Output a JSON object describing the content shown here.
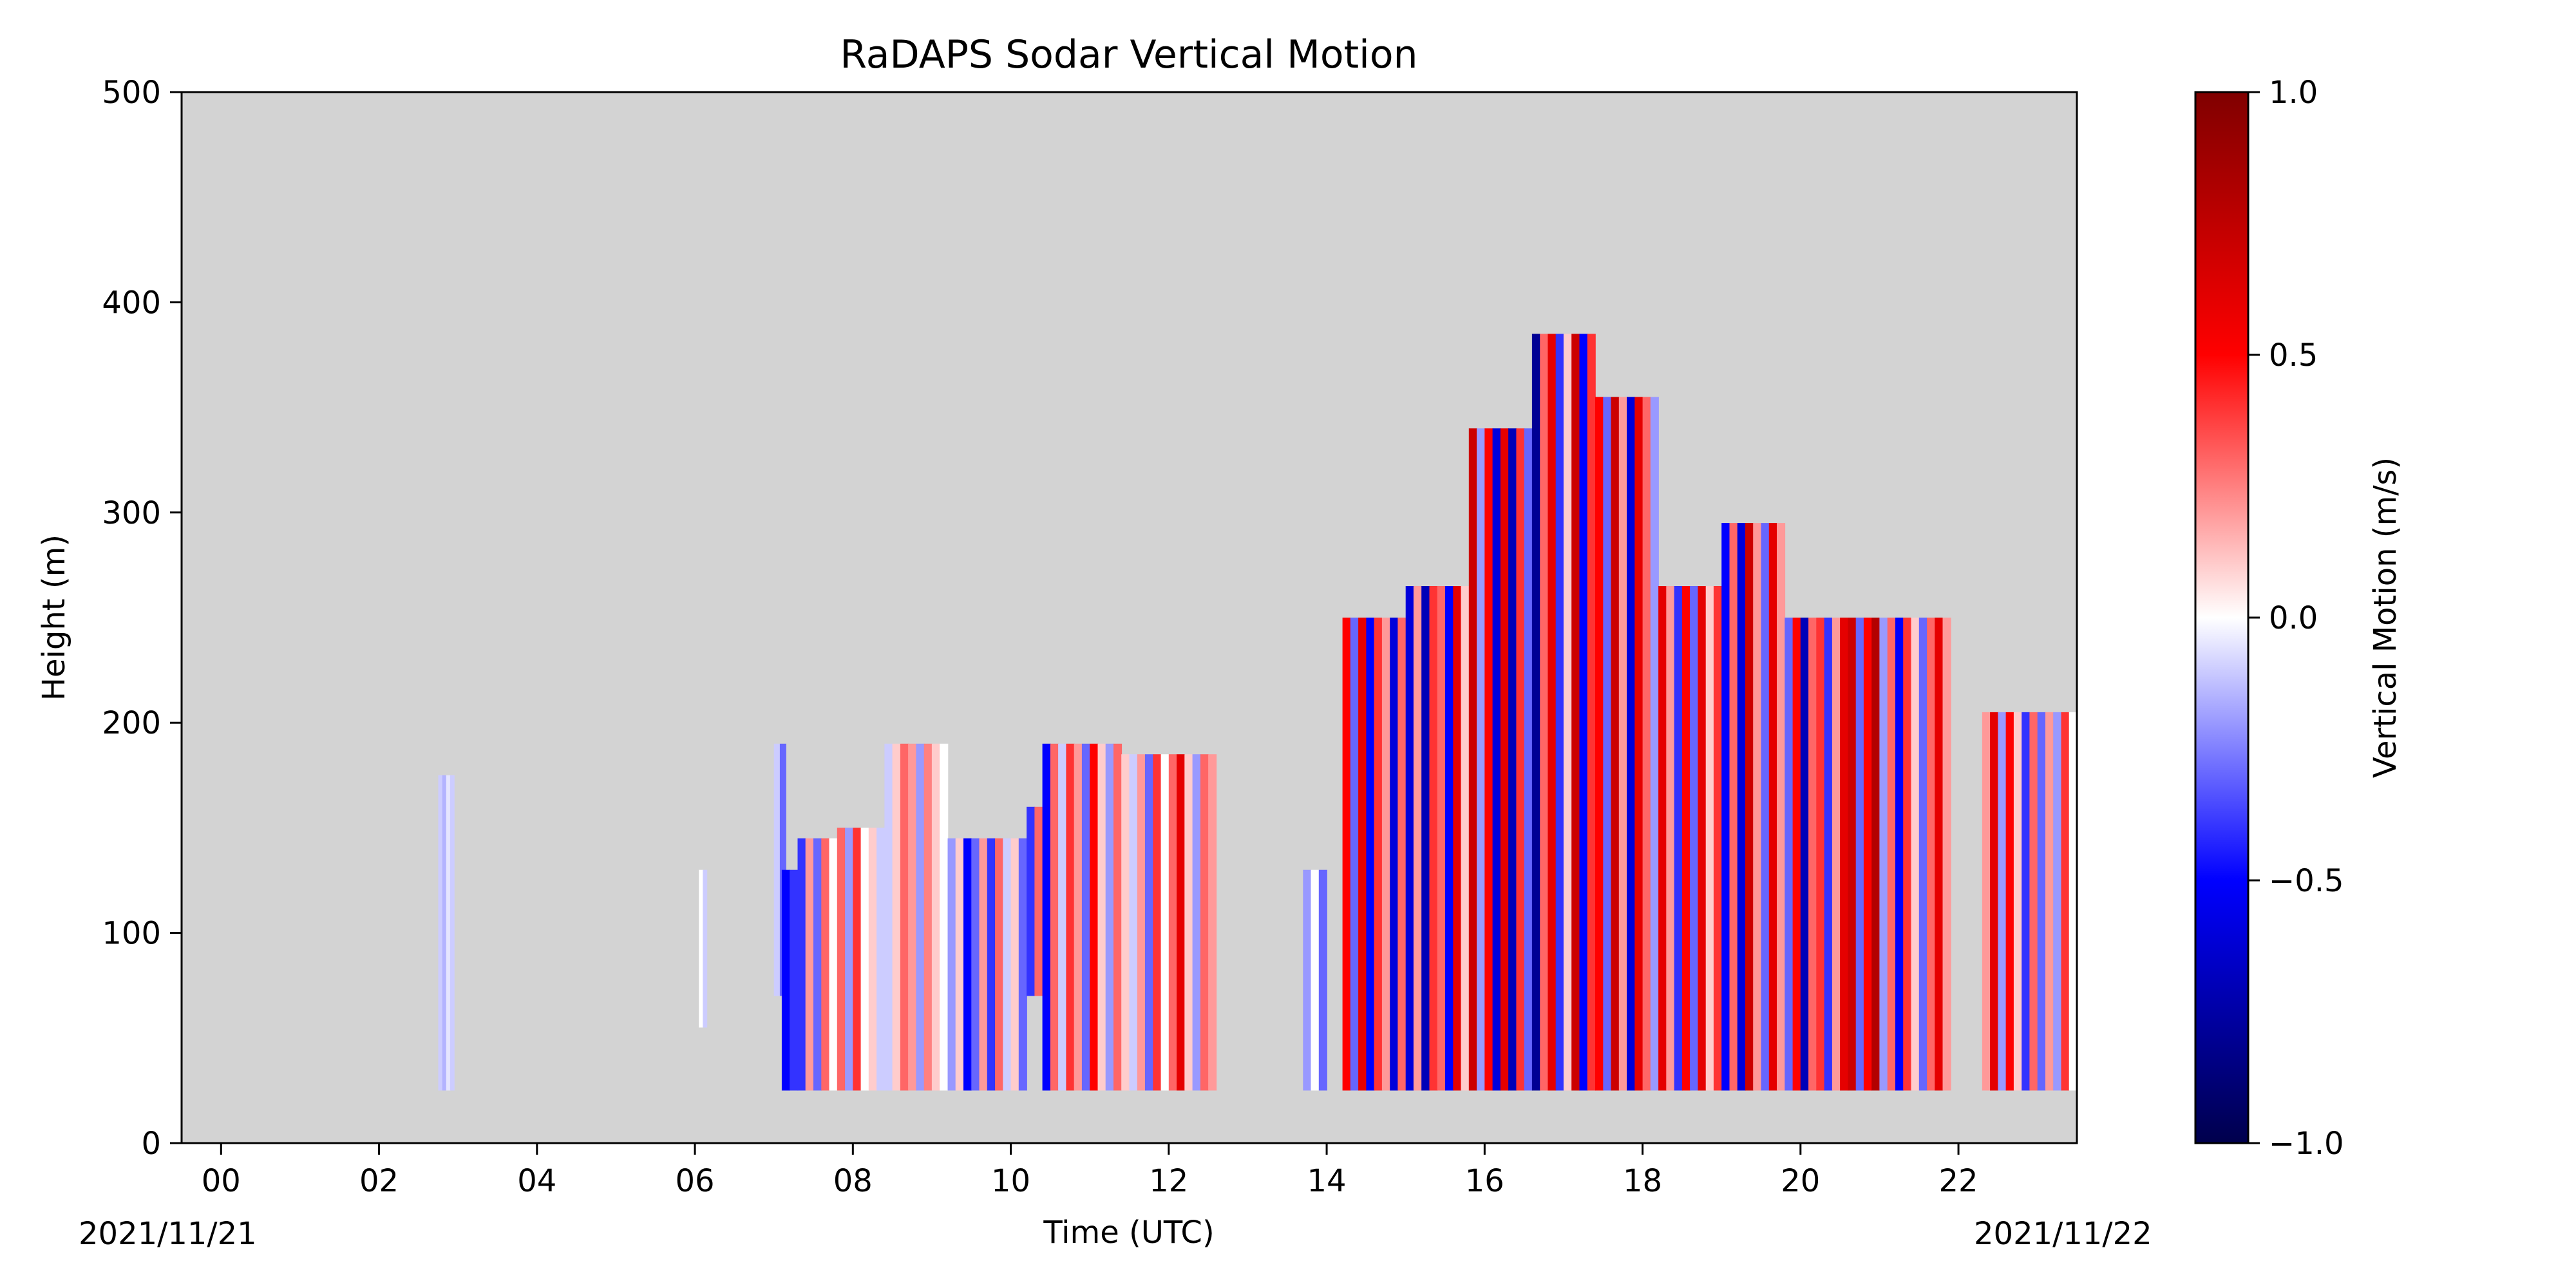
{
  "chart_data": {
    "type": "heatmap",
    "title": "RaDAPS Sodar Vertical Motion",
    "xlabel": "Time (UTC)",
    "ylabel": "Height (m)",
    "x_ticks": [
      "00",
      "02",
      "04",
      "06",
      "08",
      "10",
      "12",
      "14",
      "16",
      "18",
      "20",
      "22"
    ],
    "x_tick_values": [
      0,
      2,
      4,
      6,
      8,
      10,
      12,
      14,
      16,
      18,
      20,
      22
    ],
    "date_start": "2021/11/21",
    "date_end": "2021/11/22",
    "xlim": [
      -0.5,
      23.5
    ],
    "ylim": [
      0,
      500
    ],
    "y_ticks": [
      0,
      100,
      200,
      300,
      400,
      500
    ],
    "background_color": "#d3d3d3",
    "colormap": "seismic",
    "colorbar": {
      "label": "Vertical Motion (m/s)",
      "range": [
        -1.0,
        1.0
      ],
      "ticks": [
        "−1.0",
        "−0.5",
        "0.0",
        "0.5",
        "1.0"
      ],
      "tick_values": [
        -1.0,
        -0.5,
        0.0,
        0.5,
        1.0
      ]
    },
    "data_blocks": [
      {
        "t0": 2.75,
        "t1": 2.95,
        "h_top": 175,
        "h_bottom": 25,
        "values": [
          -0.1,
          -0.15,
          -0.05,
          -0.1
        ]
      },
      {
        "t0": 6.05,
        "t1": 6.15,
        "h_top": 130,
        "h_bottom": 55,
        "values": [
          0.0,
          -0.1
        ]
      },
      {
        "t0": 7.0,
        "t1": 7.15,
        "h_top": 190,
        "h_bottom": 70,
        "values": [
          -0.1,
          -0.3
        ]
      },
      {
        "t0": 7.1,
        "t1": 7.3,
        "h_top": 130,
        "h_bottom": 25,
        "values": [
          -0.5,
          -0.4
        ]
      },
      {
        "t0": 7.3,
        "t1": 7.8,
        "h_top": 145,
        "h_bottom": 25,
        "values": [
          -0.4,
          0.2,
          -0.3,
          0.3,
          0.0
        ]
      },
      {
        "t0": 7.8,
        "t1": 8.4,
        "h_top": 150,
        "h_bottom": 25,
        "values": [
          0.3,
          -0.2,
          0.4,
          0.0,
          0.1,
          -0.1
        ]
      },
      {
        "t0": 8.4,
        "t1": 9.2,
        "h_top": 190,
        "h_bottom": 25,
        "values": [
          -0.1,
          0.1,
          0.3,
          0.2,
          -0.2,
          0.25,
          0.1,
          0.0
        ]
      },
      {
        "t0": 9.2,
        "t1": 10.2,
        "h_top": 145,
        "h_bottom": 25,
        "values": [
          -0.2,
          0.1,
          -0.5,
          -0.3,
          0.2,
          -0.4,
          0.3,
          -0.1,
          0.1,
          -0.3
        ]
      },
      {
        "t0": 10.2,
        "t1": 10.4,
        "h_top": 160,
        "h_bottom": 70,
        "values": [
          -0.4,
          0.3
        ]
      },
      {
        "t0": 10.4,
        "t1": 11.4,
        "h_top": 190,
        "h_bottom": 25,
        "values": [
          -0.5,
          0.3,
          -0.1,
          0.4,
          0.2,
          -0.3,
          0.5,
          0.1,
          -0.2,
          0.3
        ]
      },
      {
        "t0": 11.4,
        "t1": 12.6,
        "h_top": 185,
        "h_bottom": 25,
        "values": [
          0.1,
          -0.1,
          0.2,
          -0.3,
          0.4,
          0.0,
          0.3,
          0.6,
          0.1,
          -0.2,
          0.3,
          0.2
        ]
      },
      {
        "t0": 13.7,
        "t1": 14.0,
        "h_top": 130,
        "h_bottom": 25,
        "values": [
          -0.2,
          0.0,
          -0.3
        ]
      },
      {
        "t0": 14.2,
        "t1": 15.0,
        "h_top": 250,
        "h_bottom": 25,
        "values": [
          0.5,
          -0.3,
          0.6,
          -0.5,
          0.4,
          0.2,
          -0.6,
          0.3
        ]
      },
      {
        "t0": 15.0,
        "t1": 15.8,
        "h_top": 265,
        "h_bottom": 25,
        "values": [
          -0.6,
          0.2,
          -0.7,
          0.4,
          0.3,
          -0.5,
          0.6,
          0.1
        ]
      },
      {
        "t0": 15.8,
        "t1": 16.6,
        "h_top": 340,
        "h_bottom": 25,
        "values": [
          0.7,
          -0.2,
          0.5,
          -0.6,
          0.6,
          -0.7,
          0.4,
          -0.3
        ]
      },
      {
        "t0": 16.6,
        "t1": 17.4,
        "h_top": 385,
        "h_bottom": 25,
        "values": [
          -0.8,
          0.3,
          0.6,
          -0.4,
          0.1,
          0.7,
          -0.5,
          0.4
        ]
      },
      {
        "t0": 17.4,
        "t1": 18.2,
        "h_top": 355,
        "h_bottom": 25,
        "values": [
          0.5,
          -0.3,
          0.7,
          0.2,
          -0.6,
          0.6,
          0.3,
          -0.2
        ]
      },
      {
        "t0": 18.2,
        "t1": 19.0,
        "h_top": 265,
        "h_bottom": 25,
        "values": [
          0.6,
          0.2,
          -0.4,
          0.5,
          -0.3,
          0.6,
          0.1,
          0.4
        ]
      },
      {
        "t0": 19.0,
        "t1": 19.8,
        "h_top": 295,
        "h_bottom": 25,
        "values": [
          -0.5,
          0.3,
          -0.6,
          0.7,
          0.2,
          -0.3,
          0.6,
          0.2
        ]
      },
      {
        "t0": 19.8,
        "t1": 20.6,
        "h_top": 250,
        "h_bottom": 25,
        "values": [
          -0.3,
          0.5,
          -0.7,
          0.3,
          0.4,
          -0.4,
          0.2,
          0.6
        ]
      },
      {
        "t0": 20.6,
        "t1": 21.9,
        "h_top": 250,
        "h_bottom": 25,
        "values": [
          0.7,
          -0.3,
          0.5,
          0.8,
          -0.2,
          0.3,
          -0.5,
          0.4,
          0.1,
          -0.3,
          0.3,
          0.6,
          0.2
        ]
      },
      {
        "t0": 22.3,
        "t1": 23.5,
        "h_top": 205,
        "h_bottom": 25,
        "values": [
          0.2,
          0.6,
          -0.2,
          0.5,
          0.1,
          -0.4,
          0.3,
          -0.3,
          0.2,
          -0.2,
          0.4,
          0.0
        ]
      }
    ]
  }
}
